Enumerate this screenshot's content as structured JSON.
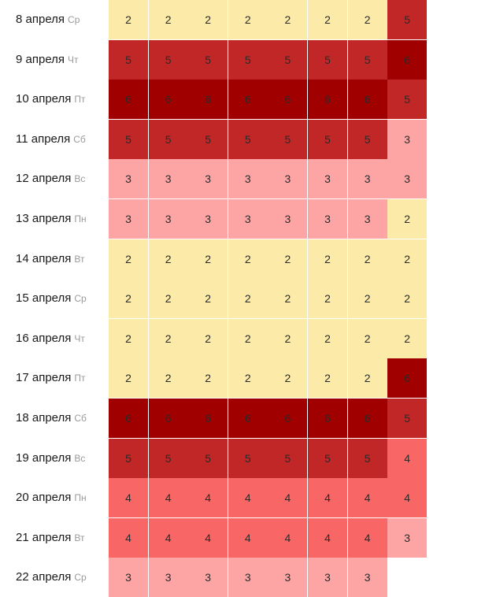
{
  "levels": {
    "2": "#fceaa8",
    "3": "#fda5a5",
    "4": "#f96666",
    "5": "#c22728",
    "6": "#a00000"
  },
  "rows": [
    {
      "date": "8 апреля",
      "day": "Ср",
      "values": [
        "2",
        "2",
        "2",
        "2",
        "2",
        "2",
        "2",
        "5"
      ]
    },
    {
      "date": "9 апреля",
      "day": "Чт",
      "values": [
        "5",
        "5",
        "5",
        "5",
        "5",
        "5",
        "5",
        "6"
      ]
    },
    {
      "date": "10 апреля",
      "day": "Пт",
      "values": [
        "6",
        "6",
        "6",
        "6",
        "6",
        "6",
        "6",
        "5"
      ]
    },
    {
      "date": "11 апреля",
      "day": "Сб",
      "values": [
        "5",
        "5",
        "5",
        "5",
        "5",
        "5",
        "5",
        "3"
      ]
    },
    {
      "date": "12 апреля",
      "day": "Вс",
      "values": [
        "3",
        "3",
        "3",
        "3",
        "3",
        "3",
        "3",
        "3"
      ]
    },
    {
      "date": "13 апреля",
      "day": "Пн",
      "values": [
        "3",
        "3",
        "3",
        "3",
        "3",
        "3",
        "3",
        "2"
      ]
    },
    {
      "date": "14 апреля",
      "day": "Вт",
      "values": [
        "2",
        "2",
        "2",
        "2",
        "2",
        "2",
        "2",
        "2"
      ]
    },
    {
      "date": "15 апреля",
      "day": "Ср",
      "values": [
        "2",
        "2",
        "2",
        "2",
        "2",
        "2",
        "2",
        "2"
      ]
    },
    {
      "date": "16 апреля",
      "day": "Чт",
      "values": [
        "2",
        "2",
        "2",
        "2",
        "2",
        "2",
        "2",
        "2"
      ]
    },
    {
      "date": "17 апреля",
      "day": "Пт",
      "values": [
        "2",
        "2",
        "2",
        "2",
        "2",
        "2",
        "2",
        "6"
      ]
    },
    {
      "date": "18 апреля",
      "day": "Сб",
      "values": [
        "6",
        "6",
        "6",
        "6",
        "6",
        "6",
        "6",
        "5"
      ]
    },
    {
      "date": "19 апреля",
      "day": "Вс",
      "values": [
        "5",
        "5",
        "5",
        "5",
        "5",
        "5",
        "5",
        "4"
      ]
    },
    {
      "date": "20 апреля",
      "day": "Пн",
      "values": [
        "4",
        "4",
        "4",
        "4",
        "4",
        "4",
        "4",
        "4"
      ]
    },
    {
      "date": "21 апреля",
      "day": "Вт",
      "values": [
        "4",
        "4",
        "4",
        "4",
        "4",
        "4",
        "4",
        "3"
      ]
    },
    {
      "date": "22 апреля",
      "day": "Ср",
      "values": [
        "3",
        "3",
        "3",
        "3",
        "3",
        "3",
        "3"
      ]
    }
  ]
}
